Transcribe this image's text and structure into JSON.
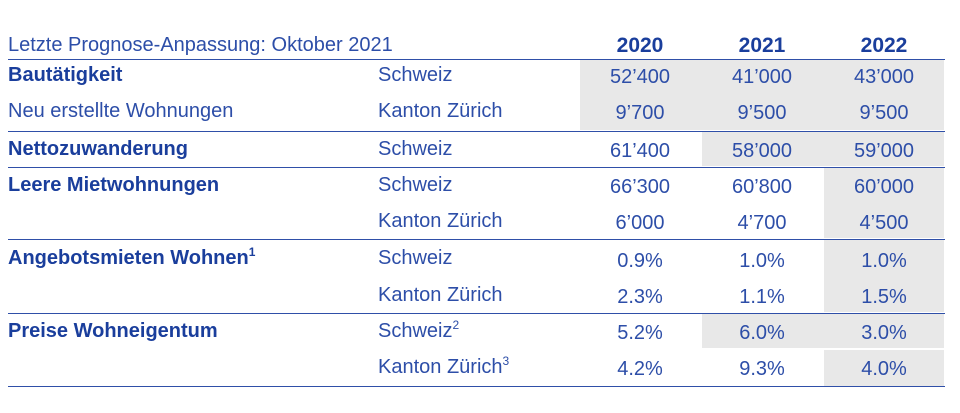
{
  "subtitle": "Letzte Prognose-Anpassung: Oktober 2021",
  "years": [
    "2020",
    "2021",
    "2022"
  ],
  "rows": [
    {
      "category": "Bautätigkeit",
      "region": "Schweiz",
      "values": [
        "52’400",
        "41’000",
        "43’000"
      ]
    },
    {
      "category_sub": "Neu erstellte Wohnungen",
      "region": "Kanton Zürich",
      "values": [
        "9’700",
        "9’500",
        "9’500"
      ]
    },
    {
      "category": "Nettozuwanderung",
      "region": "Schweiz",
      "values": [
        "61’400",
        "58’000",
        "59’000"
      ]
    },
    {
      "category": "Leere Mietwohnungen",
      "region": "Schweiz",
      "values": [
        "66’300",
        "60’800",
        "60’000"
      ]
    },
    {
      "region": "Kanton Zürich",
      "values": [
        "6’000",
        "4’700",
        "4’500"
      ]
    },
    {
      "category": "Angebotsmieten Wohnen",
      "category_sup": "1",
      "region": "Schweiz",
      "values": [
        "0.9%",
        "1.0%",
        "1.0%"
      ]
    },
    {
      "region": "Kanton Zürich",
      "values": [
        "2.3%",
        "1.1%",
        "1.5%"
      ]
    },
    {
      "category": "Preise Wohneigentum",
      "region": "Schweiz",
      "region_sup": "2",
      "values": [
        "5.2%",
        "6.0%",
        "3.0%"
      ]
    },
    {
      "region": "Kanton Zürich",
      "region_sup": "3",
      "values": [
        "4.2%",
        "9.3%",
        "4.0%"
      ]
    }
  ],
  "colors": {
    "text": "#1a3e9c",
    "shade": "#e8e8e8",
    "rule": "#2f4fa8"
  }
}
